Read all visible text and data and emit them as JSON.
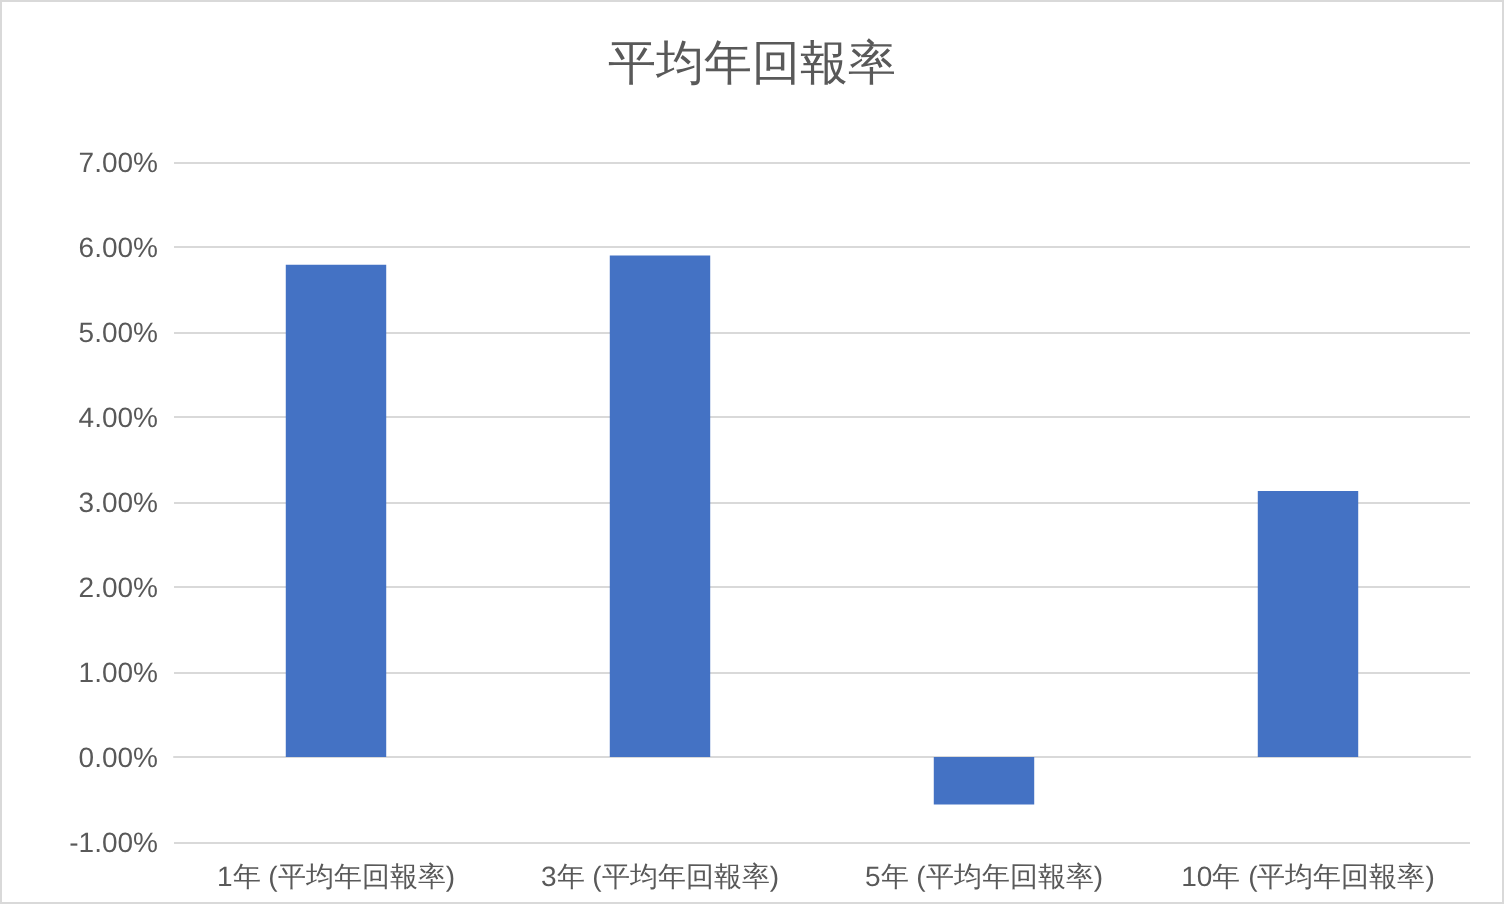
{
  "chart_data": {
    "type": "bar",
    "title": "平均年回報率",
    "categories": [
      "1年 (平均年回報率)",
      "3年 (平均年回報率)",
      "5年 (平均年回報率)",
      "10年 (平均年回報率)"
    ],
    "values": [
      5.79,
      5.9,
      -0.56,
      3.13
    ],
    "color": "#4472c4",
    "ylim": [
      -1,
      7
    ],
    "yticks": [
      {
        "value": -1,
        "label": "-1.00%"
      },
      {
        "value": 0,
        "label": "0.00%"
      },
      {
        "value": 1,
        "label": "1.00%"
      },
      {
        "value": 2,
        "label": "2.00%"
      },
      {
        "value": 3,
        "label": "3.00%"
      },
      {
        "value": 4,
        "label": "4.00%"
      },
      {
        "value": 5,
        "label": "5.00%"
      },
      {
        "value": 6,
        "label": "6.00%"
      },
      {
        "value": 7,
        "label": "7.00%"
      }
    ],
    "grid": "y"
  }
}
